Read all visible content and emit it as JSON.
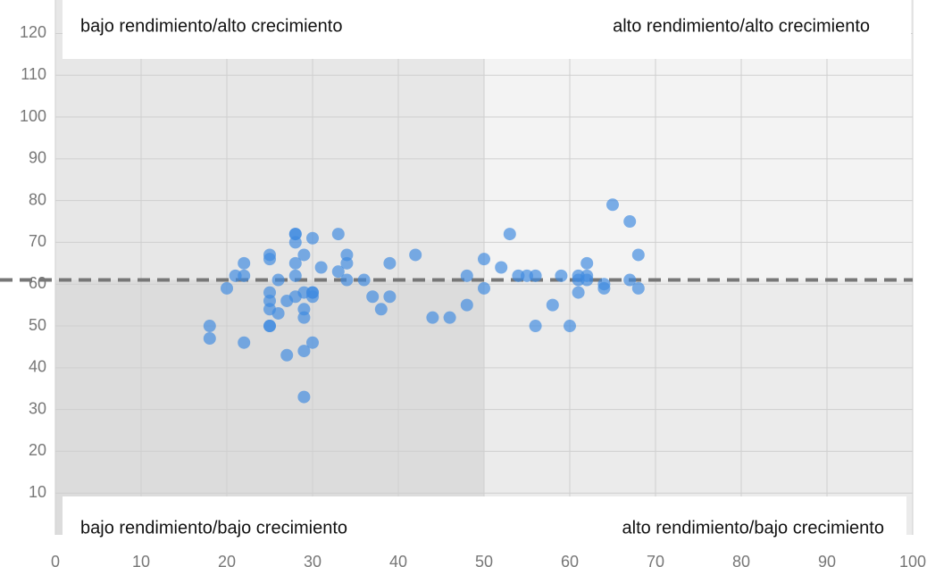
{
  "chart_data": {
    "type": "scatter",
    "annotations": [
      "bajo rendimiento/alto crecimiento",
      "alto rendimiento/alto crecimiento",
      "bajo rendimiento/bajo crecimiento",
      "alto rendimiento/bajo crecimiento"
    ],
    "x": [
      18,
      18,
      20,
      21,
      22,
      22,
      22,
      25,
      25,
      25,
      25,
      25,
      25,
      25,
      26,
      26,
      27,
      27,
      28,
      28,
      28,
      28,
      28,
      28,
      29,
      29,
      29,
      29,
      29,
      29,
      30,
      30,
      30,
      30,
      30,
      31,
      33,
      33,
      34,
      34,
      34,
      36,
      37,
      38,
      39,
      39,
      42,
      44,
      46,
      48,
      48,
      50,
      50,
      52,
      53,
      54,
      55,
      56,
      56,
      58,
      59,
      60,
      61,
      61,
      61,
      62,
      62,
      62,
      64,
      64,
      65,
      67,
      67,
      68,
      68
    ],
    "y": [
      50,
      47,
      59,
      62,
      65,
      62,
      46,
      67,
      66,
      58,
      56,
      54,
      50,
      50,
      61,
      53,
      56,
      43,
      72,
      72,
      70,
      65,
      62,
      57,
      67,
      58,
      54,
      52,
      44,
      33,
      71,
      58,
      58,
      57,
      46,
      64,
      72,
      63,
      67,
      65,
      61,
      61,
      57,
      54,
      65,
      57,
      67,
      52,
      52,
      62,
      55,
      66,
      59,
      64,
      72,
      62,
      62,
      62,
      50,
      55,
      62,
      50,
      62,
      61,
      58,
      65,
      62,
      61,
      60,
      59,
      79,
      75,
      61,
      67,
      59
    ],
    "color": "#3f8ae0",
    "xlim": [
      0,
      100
    ],
    "xticks": [
      0,
      10,
      20,
      30,
      40,
      50,
      60,
      70,
      80,
      90,
      100
    ],
    "ylim": [
      0,
      128
    ],
    "yticks": [
      10,
      20,
      30,
      40,
      50,
      60,
      70,
      80,
      90,
      100,
      110,
      120
    ],
    "grid": true,
    "x_split": 50,
    "mean_line": 61
  }
}
